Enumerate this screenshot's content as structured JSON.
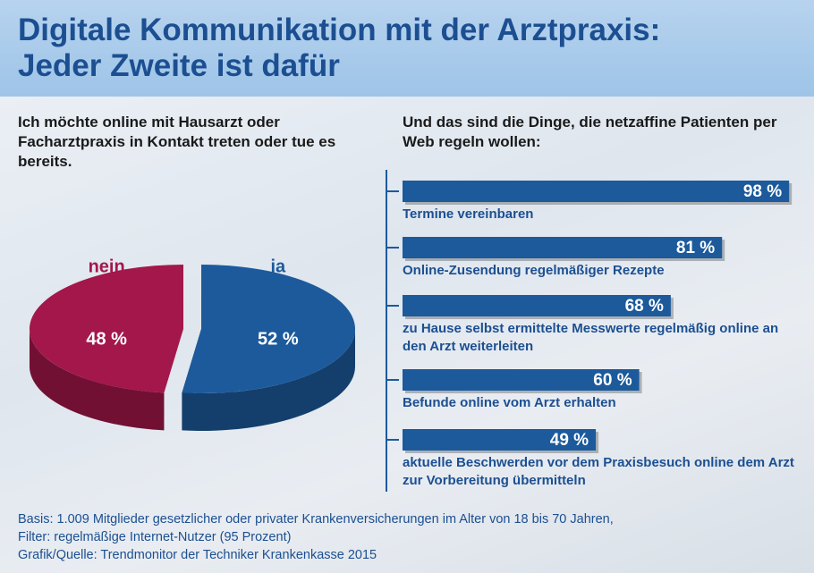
{
  "header": {
    "title": "Digitale Kommunikation mit der Arztpraxis: Jeder Zweite ist dafür"
  },
  "chart_data": [
    {
      "type": "pie",
      "title": "Ich möchte online mit Hausarzt oder Facharztpraxis in Kontakt treten oder tue es bereits.",
      "categories": [
        "nein",
        "ja"
      ],
      "values": [
        48,
        52
      ],
      "value_labels": [
        "48 %",
        "52 %"
      ],
      "colors": [
        "#a3174a",
        "#1c5a9c"
      ]
    },
    {
      "type": "hbar",
      "title": "Und das sind die Dinge, die netzaffine Patienten per Web regeln wollen:",
      "categories": [
        "Termine vereinbaren",
        "Online-Zusendung regelmäßiger Rezepte",
        "zu Hause selbst ermittelte Messwerte regelmäßig online an den Arzt weiterleiten",
        "Befunde online vom Arzt erhalten",
        "aktuelle Beschwerden vor dem Praxisbesuch online dem Arzt zur Vorbereitung übermitteln"
      ],
      "values": [
        98,
        81,
        68,
        60,
        49
      ],
      "value_labels": [
        "98 %",
        "81 %",
        "68 %",
        "60 %",
        "49 %"
      ],
      "xlim": [
        0,
        100
      ],
      "color": "#1c5a9c"
    }
  ],
  "footer": {
    "lines": [
      "Basis: 1.009 Mitglieder gesetzlicher oder privater Krankenversicherungen im Alter von 18 bis 70 Jahren,",
      "Filter: regelmäßige Internet-Nutzer (95 Prozent)",
      "Grafik/Quelle: Trendmonitor der Techniker Krankenkasse 2015"
    ]
  }
}
